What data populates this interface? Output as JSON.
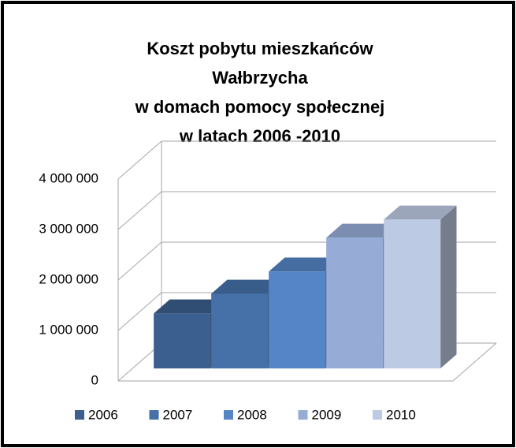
{
  "chart_data": {
    "type": "bar3d",
    "title": [
      "Koszt pobytu mieszkańców",
      "Wałbrzycha",
      "w domach pomocy społecznej",
      "w latach 2006 -2010"
    ],
    "categories": [
      ""
    ],
    "series": [
      {
        "name": "2006",
        "color": "#3b5f8e",
        "values": [
          1090000
        ]
      },
      {
        "name": "2007",
        "color": "#4571a8",
        "values": [
          1480000
        ]
      },
      {
        "name": "2008",
        "color": "#5585c6",
        "values": [
          1920000
        ]
      },
      {
        "name": "2009",
        "color": "#96acd7",
        "values": [
          2590000
        ]
      },
      {
        "name": "2010",
        "color": "#bdcae4",
        "values": [
          2950000
        ]
      }
    ],
    "ylim": [
      0,
      4000000
    ],
    "yticks": [
      0,
      {
        "value": 1000000,
        "label": "1 000 000"
      },
      {
        "value": 2000000,
        "label": "2 000 000"
      },
      {
        "value": 3000000,
        "label": "3 000 000"
      },
      {
        "value": 4000000,
        "label": "4 000 000"
      }
    ],
    "grid": true,
    "legend": "bottom"
  }
}
